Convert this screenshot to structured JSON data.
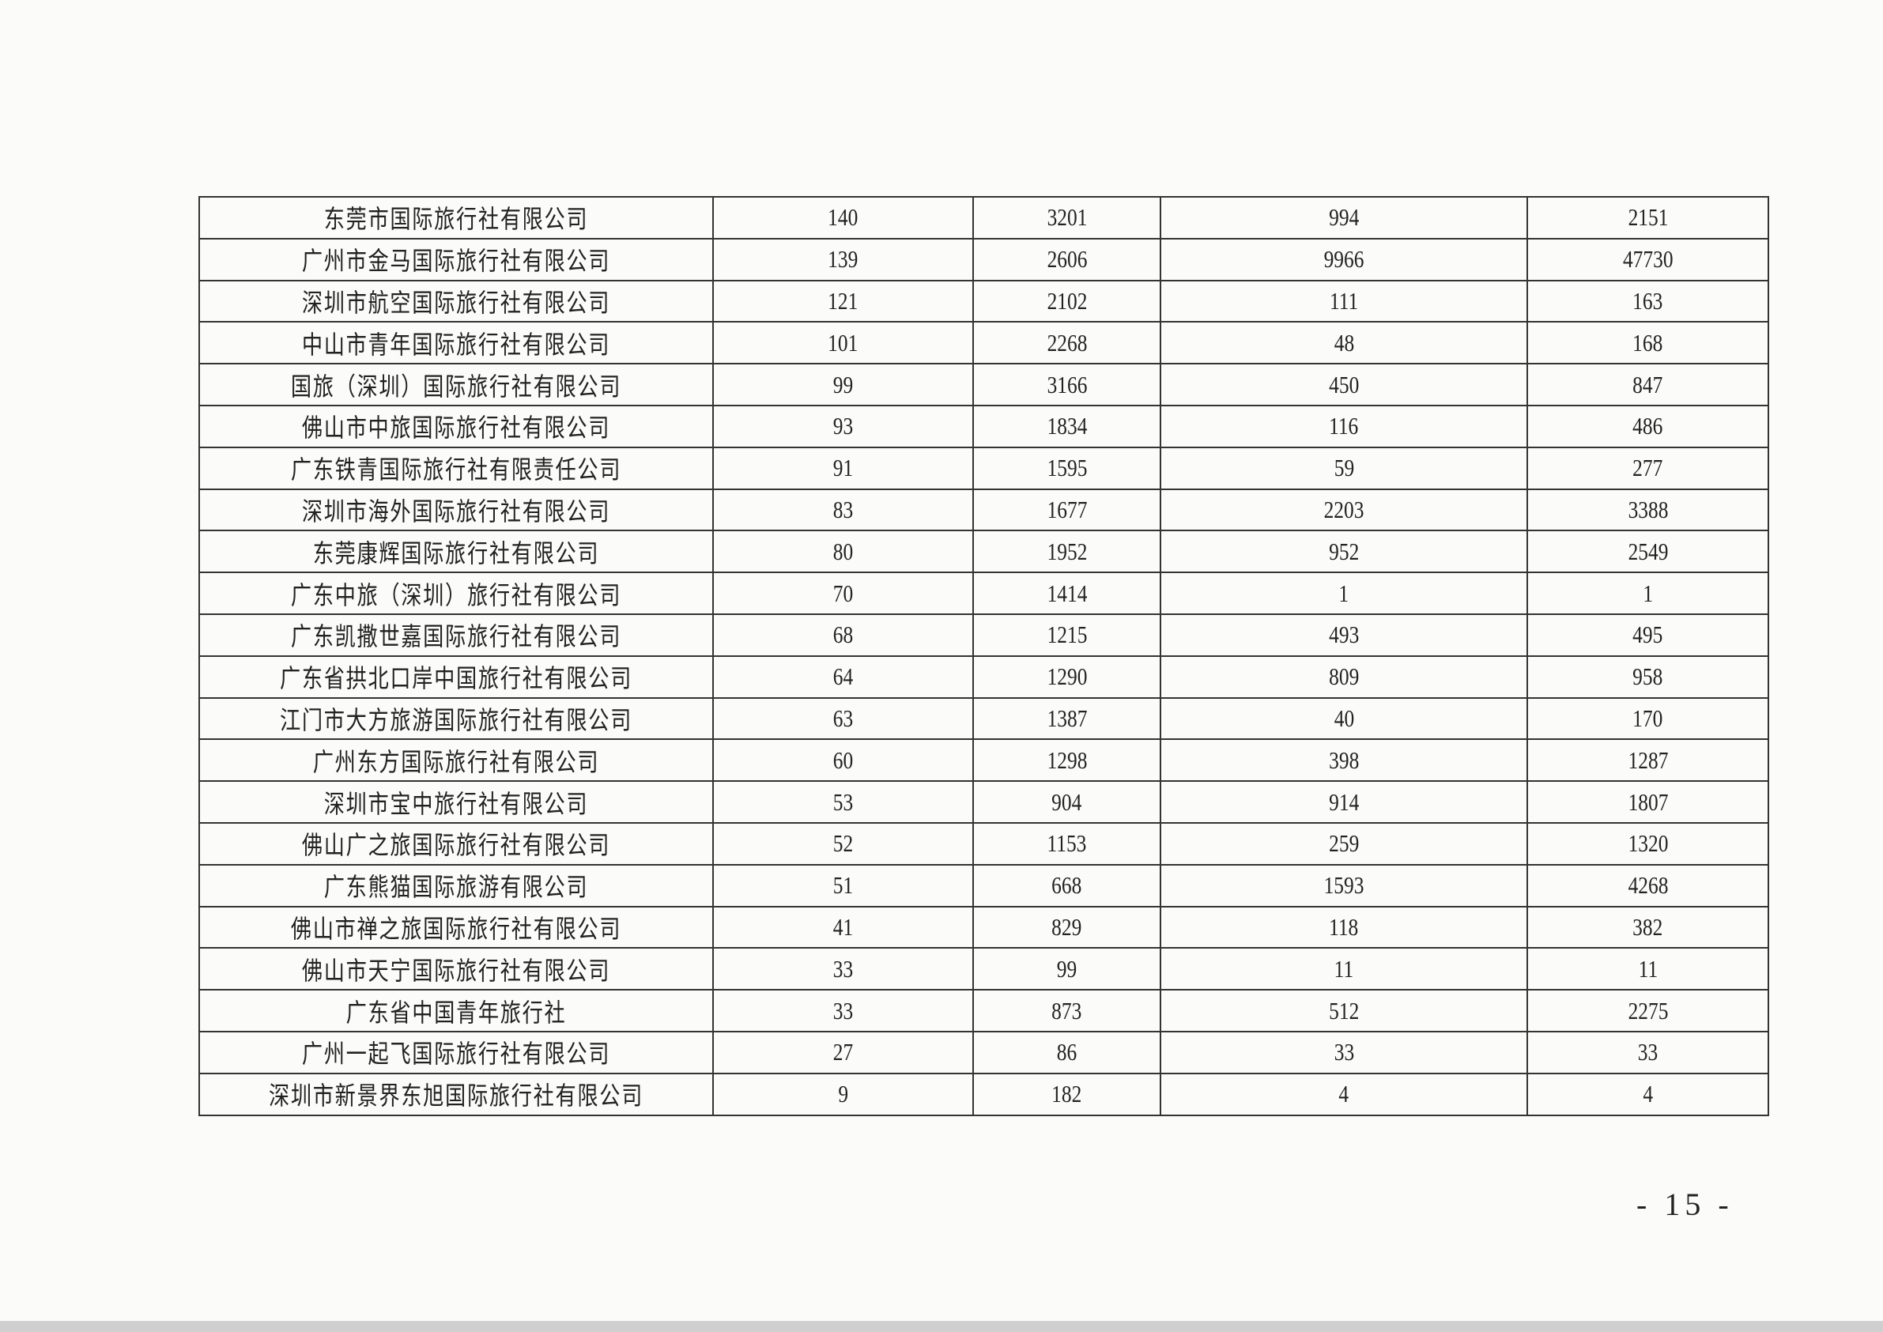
{
  "table": {
    "rows": [
      [
        "东莞市国际旅行社有限公司",
        "140",
        "3201",
        "994",
        "2151"
      ],
      [
        "广州市金马国际旅行社有限公司",
        "139",
        "2606",
        "9966",
        "47730"
      ],
      [
        "深圳市航空国际旅行社有限公司",
        "121",
        "2102",
        "111",
        "163"
      ],
      [
        "中山市青年国际旅行社有限公司",
        "101",
        "2268",
        "48",
        "168"
      ],
      [
        "国旅（深圳）国际旅行社有限公司",
        "99",
        "3166",
        "450",
        "847"
      ],
      [
        "佛山市中旅国际旅行社有限公司",
        "93",
        "1834",
        "116",
        "486"
      ],
      [
        "广东铁青国际旅行社有限责任公司",
        "91",
        "1595",
        "59",
        "277"
      ],
      [
        "深圳市海外国际旅行社有限公司",
        "83",
        "1677",
        "2203",
        "3388"
      ],
      [
        "东莞康辉国际旅行社有限公司",
        "80",
        "1952",
        "952",
        "2549"
      ],
      [
        "广东中旅（深圳）旅行社有限公司",
        "70",
        "1414",
        "1",
        "1"
      ],
      [
        "广东凯撒世嘉国际旅行社有限公司",
        "68",
        "1215",
        "493",
        "495"
      ],
      [
        "广东省拱北口岸中国旅行社有限公司",
        "64",
        "1290",
        "809",
        "958"
      ],
      [
        "江门市大方旅游国际旅行社有限公司",
        "63",
        "1387",
        "40",
        "170"
      ],
      [
        "广州东方国际旅行社有限公司",
        "60",
        "1298",
        "398",
        "1287"
      ],
      [
        "深圳市宝中旅行社有限公司",
        "53",
        "904",
        "914",
        "1807"
      ],
      [
        "佛山广之旅国际旅行社有限公司",
        "52",
        "1153",
        "259",
        "1320"
      ],
      [
        "广东熊猫国际旅游有限公司",
        "51",
        "668",
        "1593",
        "4268"
      ],
      [
        "佛山市禅之旅国际旅行社有限公司",
        "41",
        "829",
        "118",
        "382"
      ],
      [
        "佛山市天宁国际旅行社有限公司",
        "33",
        "99",
        "11",
        "11"
      ],
      [
        "广东省中国青年旅行社",
        "33",
        "873",
        "512",
        "2275"
      ],
      [
        "广州一起飞国际旅行社有限公司",
        "27",
        "86",
        "33",
        "33"
      ],
      [
        "深圳市新景界东旭国际旅行社有限公司",
        "9",
        "182",
        "4",
        "4"
      ]
    ]
  },
  "page_number": "- 15 -"
}
